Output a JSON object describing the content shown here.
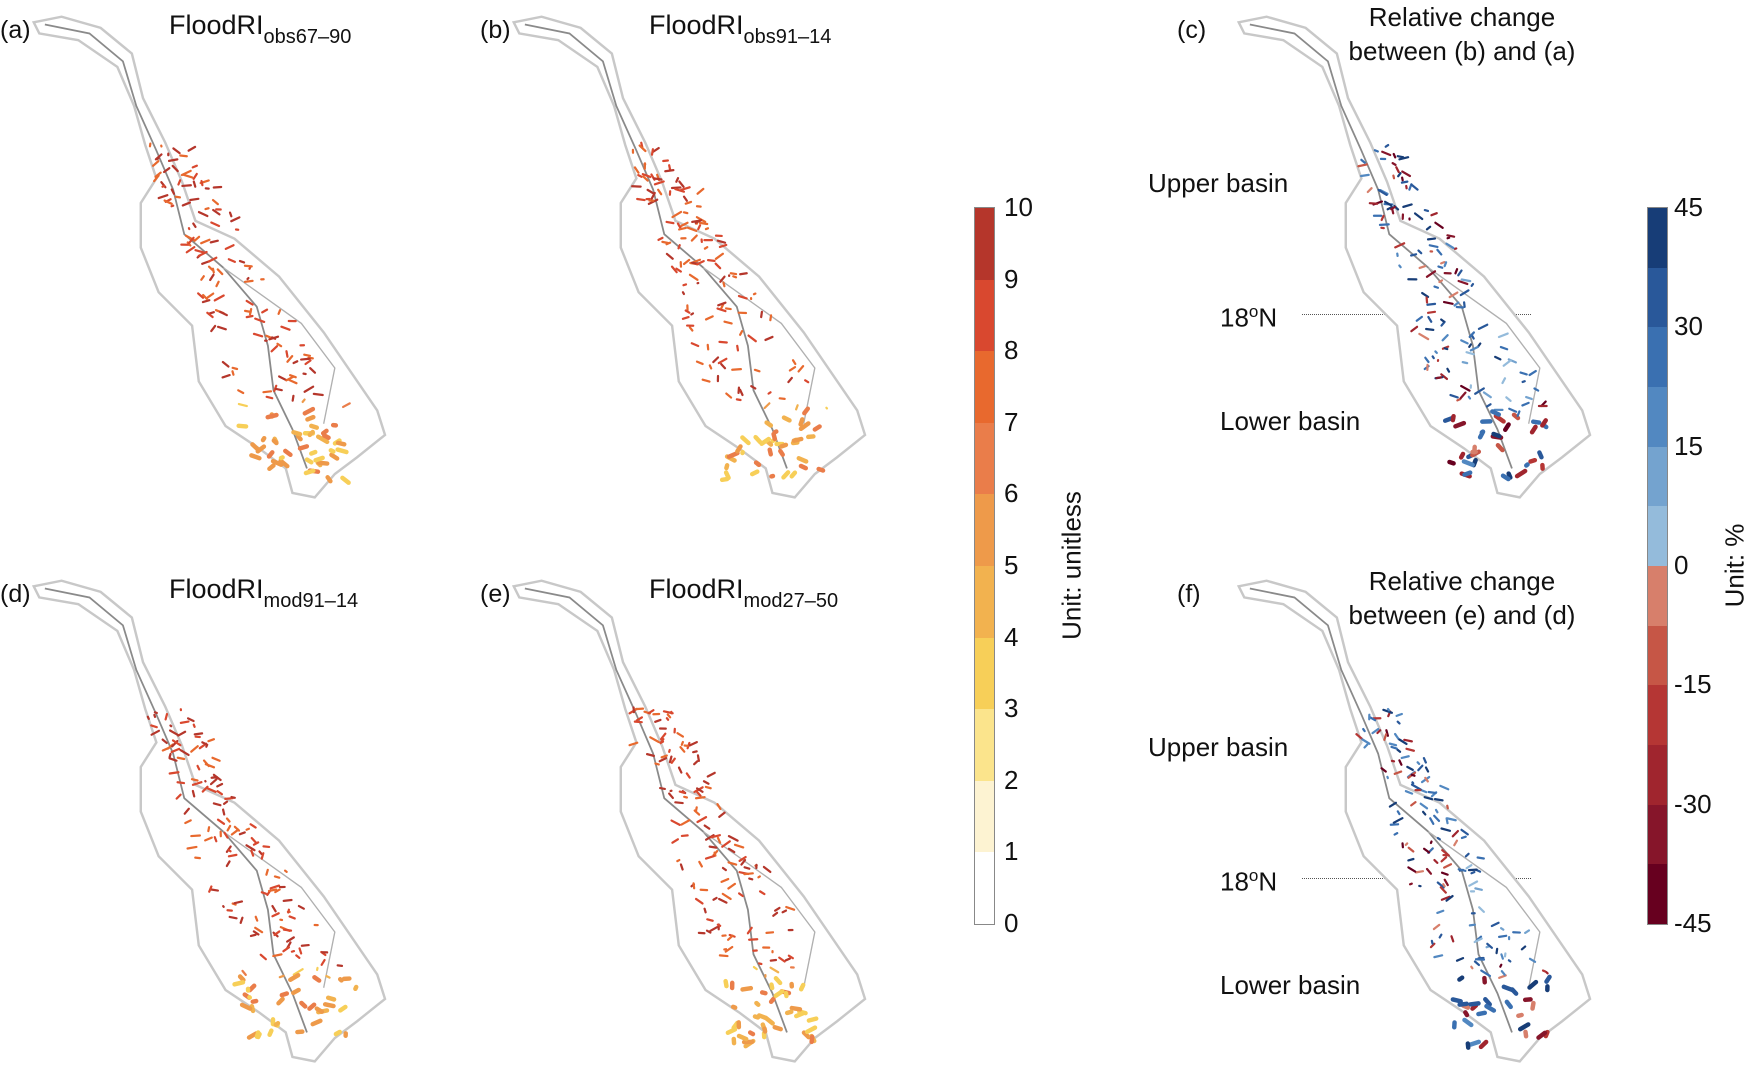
{
  "panels": [
    {
      "id": "a",
      "label": "(a)",
      "title": "FloodRI",
      "sub": "obs67–90",
      "kind": "ri",
      "seed": 3
    },
    {
      "id": "b",
      "label": "(b)",
      "title": "FloodRI",
      "sub": "obs91–14",
      "kind": "ri",
      "seed": 7
    },
    {
      "id": "c",
      "label": "(c)",
      "title_line1": "Relative change",
      "title_line2": "between (b) and (a)",
      "kind": "rel",
      "seed": 11
    },
    {
      "id": "d",
      "label": "(d)",
      "title": "FloodRI",
      "sub": "mod91–14",
      "kind": "ri",
      "seed": 5
    },
    {
      "id": "e",
      "label": "(e)",
      "title": "FloodRI",
      "sub": "mod27–50",
      "kind": "ri",
      "seed": 9
    },
    {
      "id": "f",
      "label": "(f)",
      "title_line1": "Relative change",
      "title_line2": "between (e) and (d)",
      "kind": "rel",
      "seed": 13
    }
  ],
  "annotations": {
    "upper": "Upper basin",
    "lat": "18",
    "lat_unit": "o",
    "lat_dir": "N",
    "lower": "Lower basin"
  },
  "colorbar_ri": {
    "unit": "Unit: unitless",
    "ticks": [
      "10",
      "9",
      "8",
      "7",
      "6",
      "5",
      "4",
      "3",
      "2",
      "1",
      "0"
    ],
    "colors": [
      "#ffffff",
      "#fdf3d2",
      "#fbe48c",
      "#f7cf58",
      "#f2b24f",
      "#ee9a4a",
      "#ea7d4a",
      "#e8692e",
      "#d9482f",
      "#b5362b"
    ]
  },
  "colorbar_rel": {
    "unit": "Unit: %",
    "ticks": [
      "45",
      "30",
      "15",
      "0",
      "-15",
      "-30",
      "-45"
    ],
    "colors": [
      "#67001f",
      "#86152a",
      "#a0252e",
      "#b53634",
      "#c65646",
      "#d77f6b",
      "#94bbdb",
      "#74a3cf",
      "#5288c1",
      "#3a70b1",
      "#29589a",
      "#173d77"
    ]
  }
}
